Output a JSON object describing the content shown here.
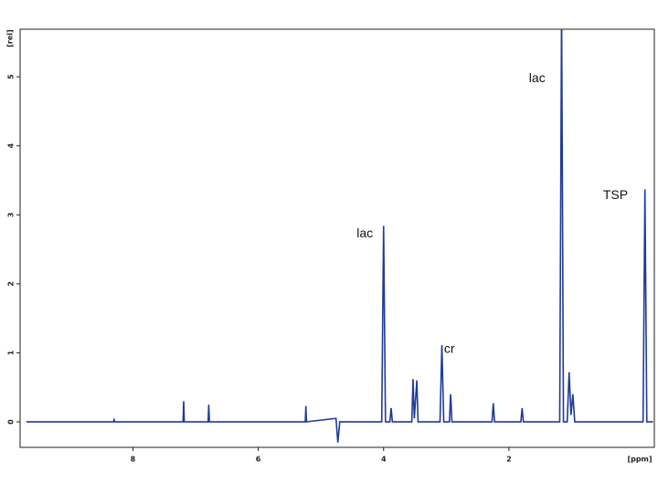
{
  "chart_data": {
    "type": "line",
    "x_label": "[ppm]",
    "y_label": "[rel]",
    "x": [
      9.7,
      8.31,
      8.3,
      8.29,
      7.2,
      7.19,
      7.18,
      6.8,
      6.79,
      6.78,
      5.25,
      5.24,
      5.23,
      4.76,
      4.73,
      4.7,
      4.03,
      4.0,
      3.97,
      3.9,
      3.88,
      3.86,
      3.55,
      3.53,
      3.51,
      3.47,
      3.45,
      3.1,
      3.07,
      3.04,
      2.95,
      2.93,
      2.91,
      2.27,
      2.25,
      2.23,
      1.81,
      1.79,
      1.77,
      1.19,
      1.16,
      1.13,
      1.07,
      1.04,
      1.01,
      0.98,
      0.95,
      -0.14,
      -0.17,
      -0.2,
      -0.3
    ],
    "series": [
      {
        "color": "#1f3b96",
        "values": [
          0,
          0,
          0.03,
          0,
          0,
          0.3,
          0,
          0,
          0.25,
          0,
          0,
          0.23,
          0,
          0.05,
          -0.3,
          0,
          0,
          2.84,
          0,
          0,
          0.2,
          0,
          0,
          0.62,
          0.05,
          0.6,
          0,
          0,
          1.11,
          0,
          0,
          0.4,
          0,
          0,
          0.27,
          0,
          0,
          0.2,
          0,
          0,
          6,
          0,
          0,
          0.72,
          0.1,
          0.4,
          0,
          0,
          3.37,
          0,
          0
        ]
      }
    ],
    "xlim": [
      9.8,
      -0.32
    ],
    "ylim": [
      -0.37,
      5.69
    ],
    "xticks": [
      8,
      6,
      4,
      2
    ],
    "yticks": [
      0,
      1,
      2,
      3,
      4,
      5
    ],
    "annotations": [
      {
        "text": "lac",
        "x": 4.3,
        "y": 2.72
      },
      {
        "text": "lac",
        "x": 1.55,
        "y": 4.97
      },
      {
        "text": "cr",
        "x": 2.95,
        "y": 1.05
      },
      {
        "text": "TSP",
        "x": 0.3,
        "y": 3.28
      }
    ]
  }
}
